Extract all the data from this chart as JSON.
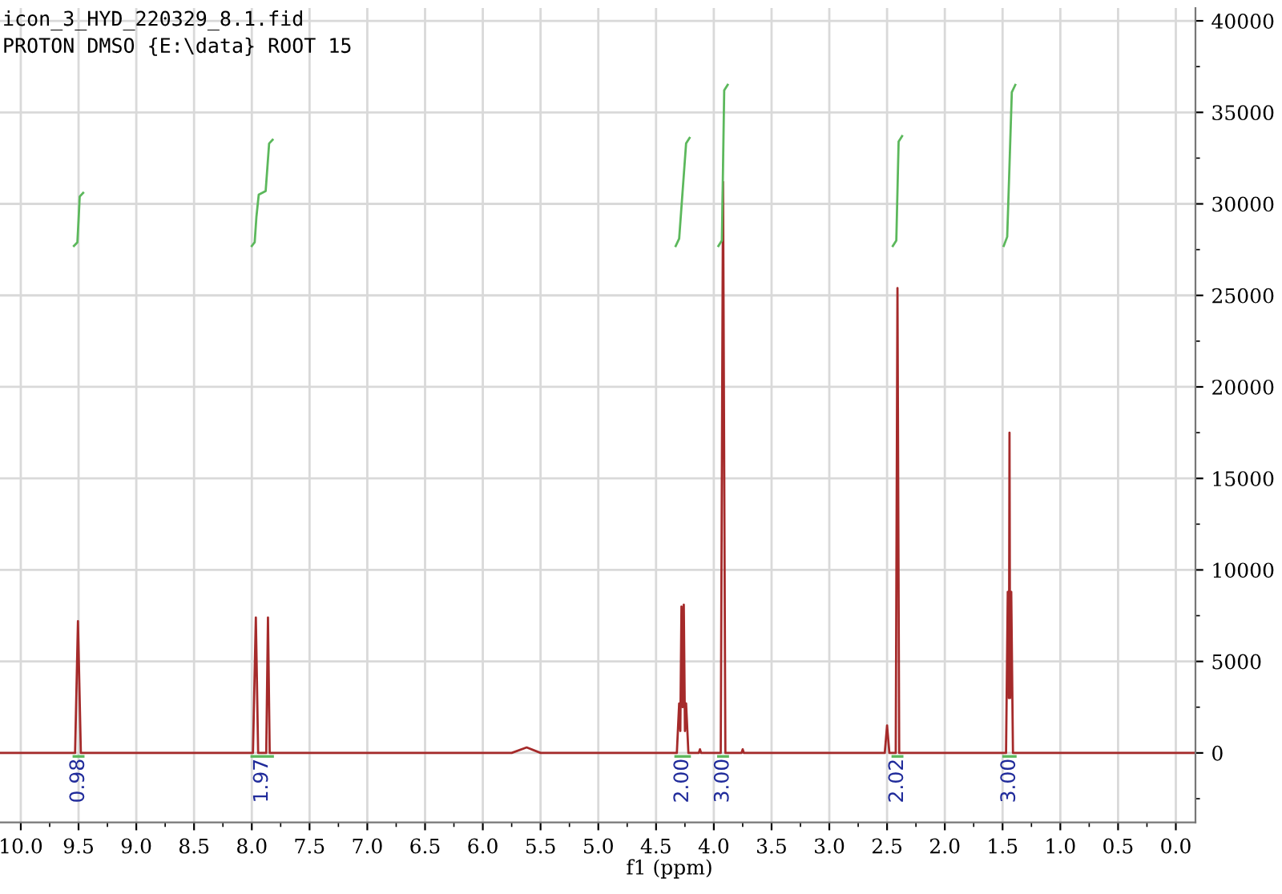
{
  "chart_data": {
    "type": "line",
    "xlabel": "f1 (ppm)",
    "annotations": [
      "icon_3_HYD_220329_8.1.fid",
      "PROTON DMSO {E:\\data} ROOT 15",
      "0.98",
      "1.97",
      "2.00",
      "3.00",
      "2.02",
      "3.00"
    ],
    "series": [
      {
        "color": "#a52a2a",
        "x": [
          10.18,
          9.53,
          9.505,
          9.48,
          7.99,
          7.965,
          7.945,
          7.875,
          7.86,
          7.845,
          5.75,
          5.62,
          5.5,
          4.32,
          4.3,
          4.29,
          4.28,
          4.27,
          4.26,
          4.25,
          4.24,
          4.22,
          4.13,
          4.12,
          4.11,
          3.94,
          3.92,
          3.9,
          3.76,
          3.75,
          3.74,
          2.52,
          2.5,
          2.48,
          2.425,
          2.41,
          2.395,
          1.47,
          1.455,
          1.445,
          1.44,
          1.435,
          1.425,
          1.41,
          -0.17
        ],
        "values": [
          0,
          0,
          7200,
          0,
          0,
          7400,
          0,
          0,
          7400,
          0,
          0,
          300,
          0,
          0,
          2700,
          1200,
          8000,
          2500,
          8100,
          1200,
          2700,
          0,
          0,
          200,
          0,
          0,
          31200,
          0,
          0,
          200,
          0,
          0,
          1500,
          0,
          0,
          25400,
          0,
          0,
          8800,
          3000,
          17500,
          3000,
          8800,
          0,
          0
        ]
      },
      {
        "color": "#5cb85c",
        "x": [
          9.54,
          9.51,
          9.5,
          9.49,
          9.46
        ],
        "values": [
          27700,
          27900,
          29100,
          30400,
          30600
        ]
      },
      {
        "color": "#5cb85c",
        "x": [
          8.0,
          7.975,
          7.96,
          7.94,
          7.88,
          7.865,
          7.85,
          7.82
        ],
        "values": [
          27700,
          27900,
          29300,
          30500,
          30700,
          32000,
          33300,
          33500
        ]
      },
      {
        "color": "#5cb85c",
        "x": [
          4.33,
          4.3,
          4.27,
          4.24,
          4.21
        ],
        "values": [
          27700,
          28100,
          30700,
          33300,
          33600
        ]
      },
      {
        "color": "#5cb85c",
        "x": [
          3.96,
          3.93,
          3.92,
          3.91,
          3.88
        ],
        "values": [
          27700,
          28000,
          32100,
          36200,
          36500
        ]
      },
      {
        "color": "#5cb85c",
        "x": [
          2.45,
          2.42,
          2.41,
          2.4,
          2.37
        ],
        "values": [
          27700,
          28000,
          30700,
          33400,
          33700
        ]
      },
      {
        "color": "#5cb85c",
        "x": [
          1.49,
          1.46,
          1.44,
          1.42,
          1.39
        ],
        "values": [
          27700,
          28200,
          32100,
          36100,
          36500
        ]
      }
    ],
    "xlim": [
      10.18,
      -0.17
    ],
    "ylim": [
      -3800,
      40700
    ],
    "xticks": [
      {
        "value": 10,
        "label": "10.0"
      },
      9.5,
      {
        "value": 9,
        "label": "9.0"
      },
      8.5,
      {
        "value": 8,
        "label": "8.0"
      },
      7.5,
      {
        "value": 7,
        "label": "7.0"
      },
      6.5,
      {
        "value": 6,
        "label": "6.0"
      },
      5.5,
      {
        "value": 5,
        "label": "5.0"
      },
      4.5,
      {
        "value": 4,
        "label": "4.0"
      },
      3.5,
      {
        "value": 3,
        "label": "3.0"
      },
      2.5,
      {
        "value": 2,
        "label": "2.0"
      },
      1.5,
      {
        "value": 1,
        "label": "1.0"
      },
      0.5,
      {
        "value": 0,
        "label": "0.0"
      }
    ],
    "yticks": [
      0,
      5000,
      10000,
      15000,
      20000,
      25000,
      30000,
      35000,
      40000
    ],
    "grid": true,
    "legend": false
  }
}
